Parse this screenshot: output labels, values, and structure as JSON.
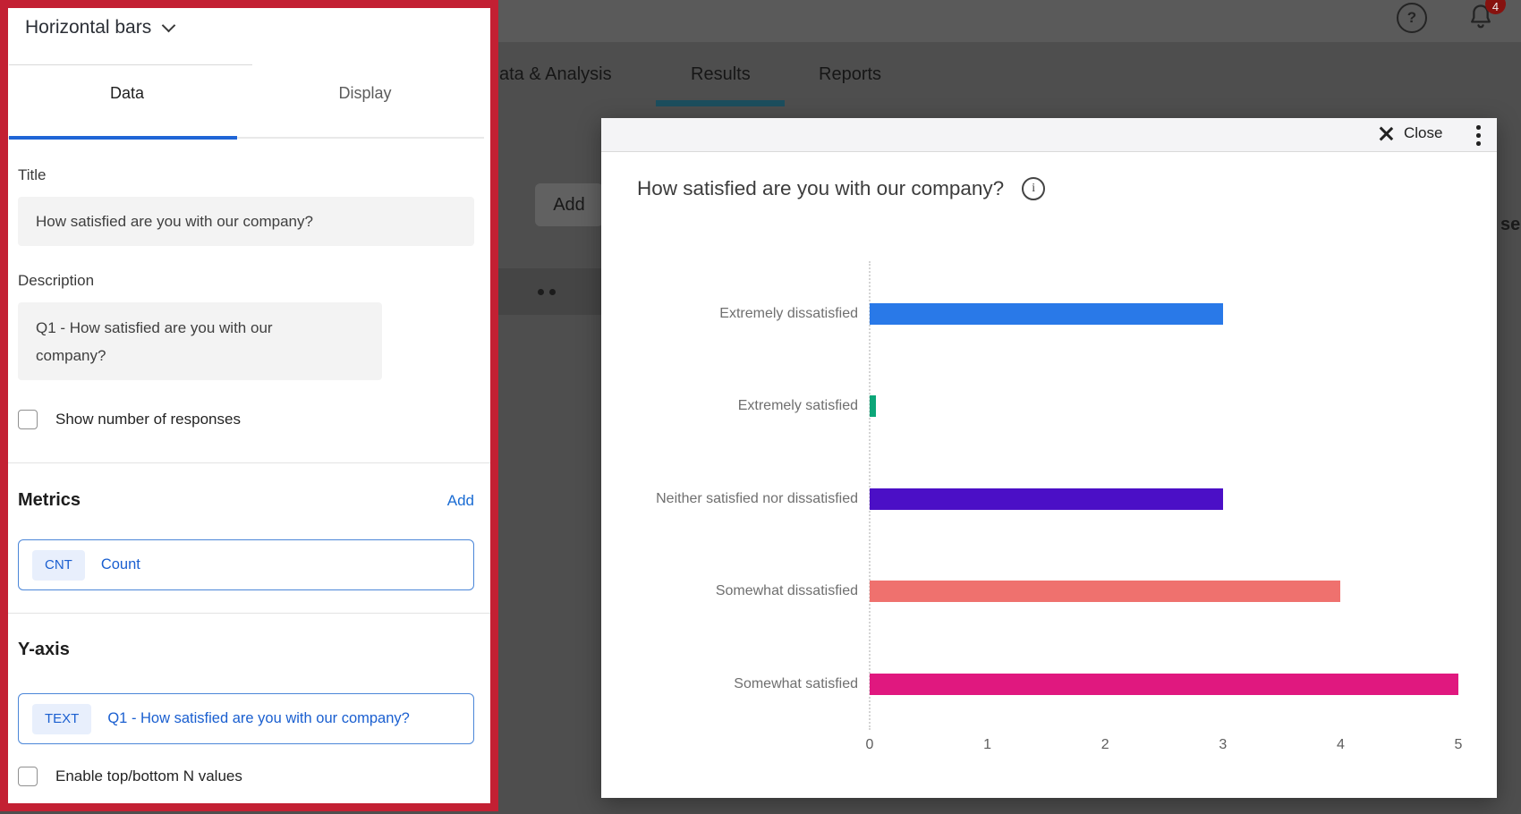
{
  "background": {
    "nav_tabs": [
      {
        "label": "ata & Analysis",
        "active": false
      },
      {
        "label": "Results",
        "active": true
      },
      {
        "label": "Reports",
        "active": false
      }
    ],
    "add_button_label": "Add",
    "partial_text": "se",
    "notification_count": "4",
    "underline_color": "#1c4e5e"
  },
  "icons": {
    "help_glyph": "?",
    "info_glyph": "i"
  },
  "panel": {
    "accent_border_color": "#c32033",
    "type_selector_label": "Horizontal bars",
    "tabs": [
      {
        "label": "Data",
        "active": true
      },
      {
        "label": "Display",
        "active": false
      }
    ],
    "title_label": "Title",
    "title_value": "How satisfied are you with our company?",
    "description_label": "Description",
    "description_value": "Q1 - How satisfied are you with our company?",
    "show_responses_label": "Show number of responses",
    "metrics": {
      "heading": "Metrics",
      "add_label": "Add",
      "chip": "CNT",
      "value": "Count"
    },
    "y_axis": {
      "heading": "Y-axis",
      "chip": "TEXT",
      "value": "Q1 - How satisfied are you with our company?",
      "enable_label": "Enable top/bottom N values"
    }
  },
  "modal": {
    "close_label": "Close"
  },
  "chart_data": {
    "type": "bar",
    "orientation": "horizontal",
    "title": "How satisfied are you with our company?",
    "categories": [
      "Extremely dissatisfied",
      "Extremely satisfied",
      "Neither satisfied nor dissatisfied",
      "Somewhat dissatisfied",
      "Somewhat satisfied"
    ],
    "values": [
      3,
      0.05,
      3,
      4,
      5
    ],
    "colors": [
      "#2979e8",
      "#0ca678",
      "#4b0fc6",
      "#ef716e",
      "#e0187f"
    ],
    "xlim": [
      0,
      5
    ],
    "x_ticks": [
      0,
      1,
      2,
      3,
      4,
      5
    ],
    "grid": "zero-line-dotted",
    "metric": "Count"
  }
}
